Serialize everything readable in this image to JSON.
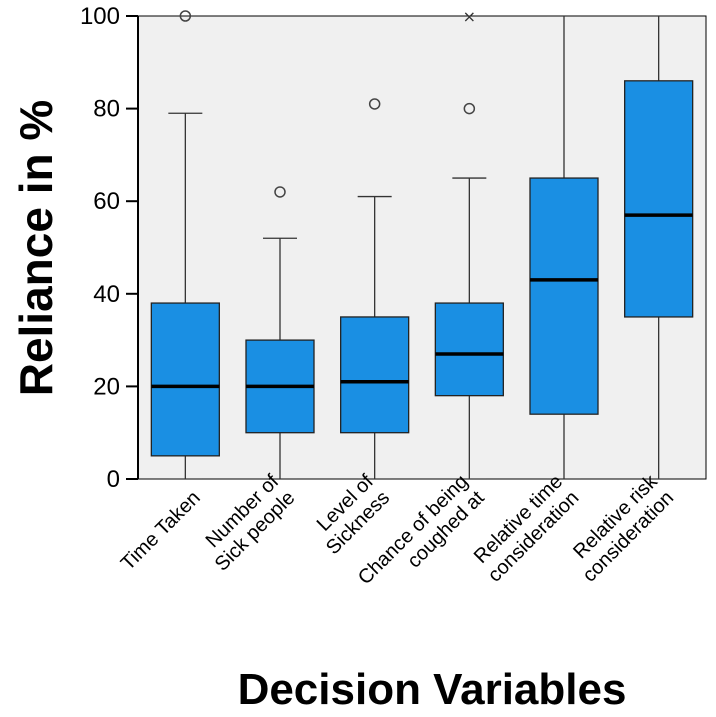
{
  "chart_data": {
    "type": "boxplot",
    "title": "",
    "xlabel": "Decision Variables",
    "ylabel": "Reliance in %",
    "ylim": [
      0,
      100
    ],
    "yticks": [
      "0",
      "20",
      "40",
      "60",
      "80",
      "100"
    ],
    "grid": false,
    "box_color": "#1a8fe3",
    "plot_background": "#f0f0f0",
    "categories": [
      {
        "label_lines": [
          "Time Taken"
        ],
        "whisker_low": 0,
        "q1": 5,
        "median": 20,
        "q3": 38,
        "whisker_high": 79,
        "outliers": [
          {
            "value": 100,
            "marker": "circle"
          }
        ]
      },
      {
        "label_lines": [
          "Number of",
          "Sick people"
        ],
        "whisker_low": 0,
        "q1": 10,
        "median": 20,
        "q3": 30,
        "whisker_high": 52,
        "outliers": [
          {
            "value": 62,
            "marker": "circle"
          }
        ]
      },
      {
        "label_lines": [
          "Level of",
          "Sickness"
        ],
        "whisker_low": 0,
        "q1": 10,
        "median": 21,
        "q3": 35,
        "whisker_high": 61,
        "outliers": [
          {
            "value": 81,
            "marker": "circle"
          }
        ]
      },
      {
        "label_lines": [
          "Chance of being",
          "coughed at"
        ],
        "whisker_low": 0,
        "q1": 18,
        "median": 27,
        "q3": 38,
        "whisker_high": 65,
        "outliers": [
          {
            "value": 80,
            "marker": "circle"
          },
          {
            "value": 100,
            "marker": "star"
          }
        ]
      },
      {
        "label_lines": [
          "Relative time",
          "consideration"
        ],
        "whisker_low": 0,
        "q1": 14,
        "median": 43,
        "q3": 65,
        "whisker_high": 100,
        "outliers": []
      },
      {
        "label_lines": [
          "Relative risk",
          "consideration"
        ],
        "whisker_low": 0,
        "q1": 35,
        "median": 57,
        "q3": 86,
        "whisker_high": 100,
        "outliers": []
      }
    ]
  }
}
